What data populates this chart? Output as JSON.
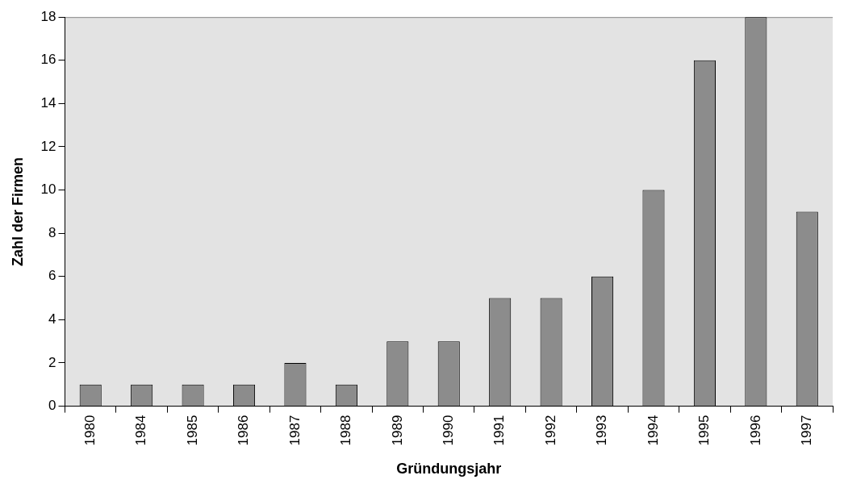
{
  "chart_data": {
    "type": "bar",
    "xlabel": "Gründungsjahr",
    "ylabel": "Zahl der Firmen",
    "categories": [
      "1980",
      "1984",
      "1985",
      "1986",
      "1987",
      "1988",
      "1989",
      "1990",
      "1991",
      "1992",
      "1993",
      "1994",
      "1995",
      "1996",
      "1997"
    ],
    "values": [
      1,
      1,
      1,
      1,
      2,
      1,
      3,
      3,
      5,
      5,
      6,
      10,
      16,
      18,
      9
    ],
    "color": "#8c8c8c",
    "ylim": [
      0,
      18
    ],
    "yticks": [
      0,
      2,
      4,
      6,
      8,
      10,
      12,
      14,
      16,
      18
    ],
    "grid": false,
    "legend": false
  }
}
